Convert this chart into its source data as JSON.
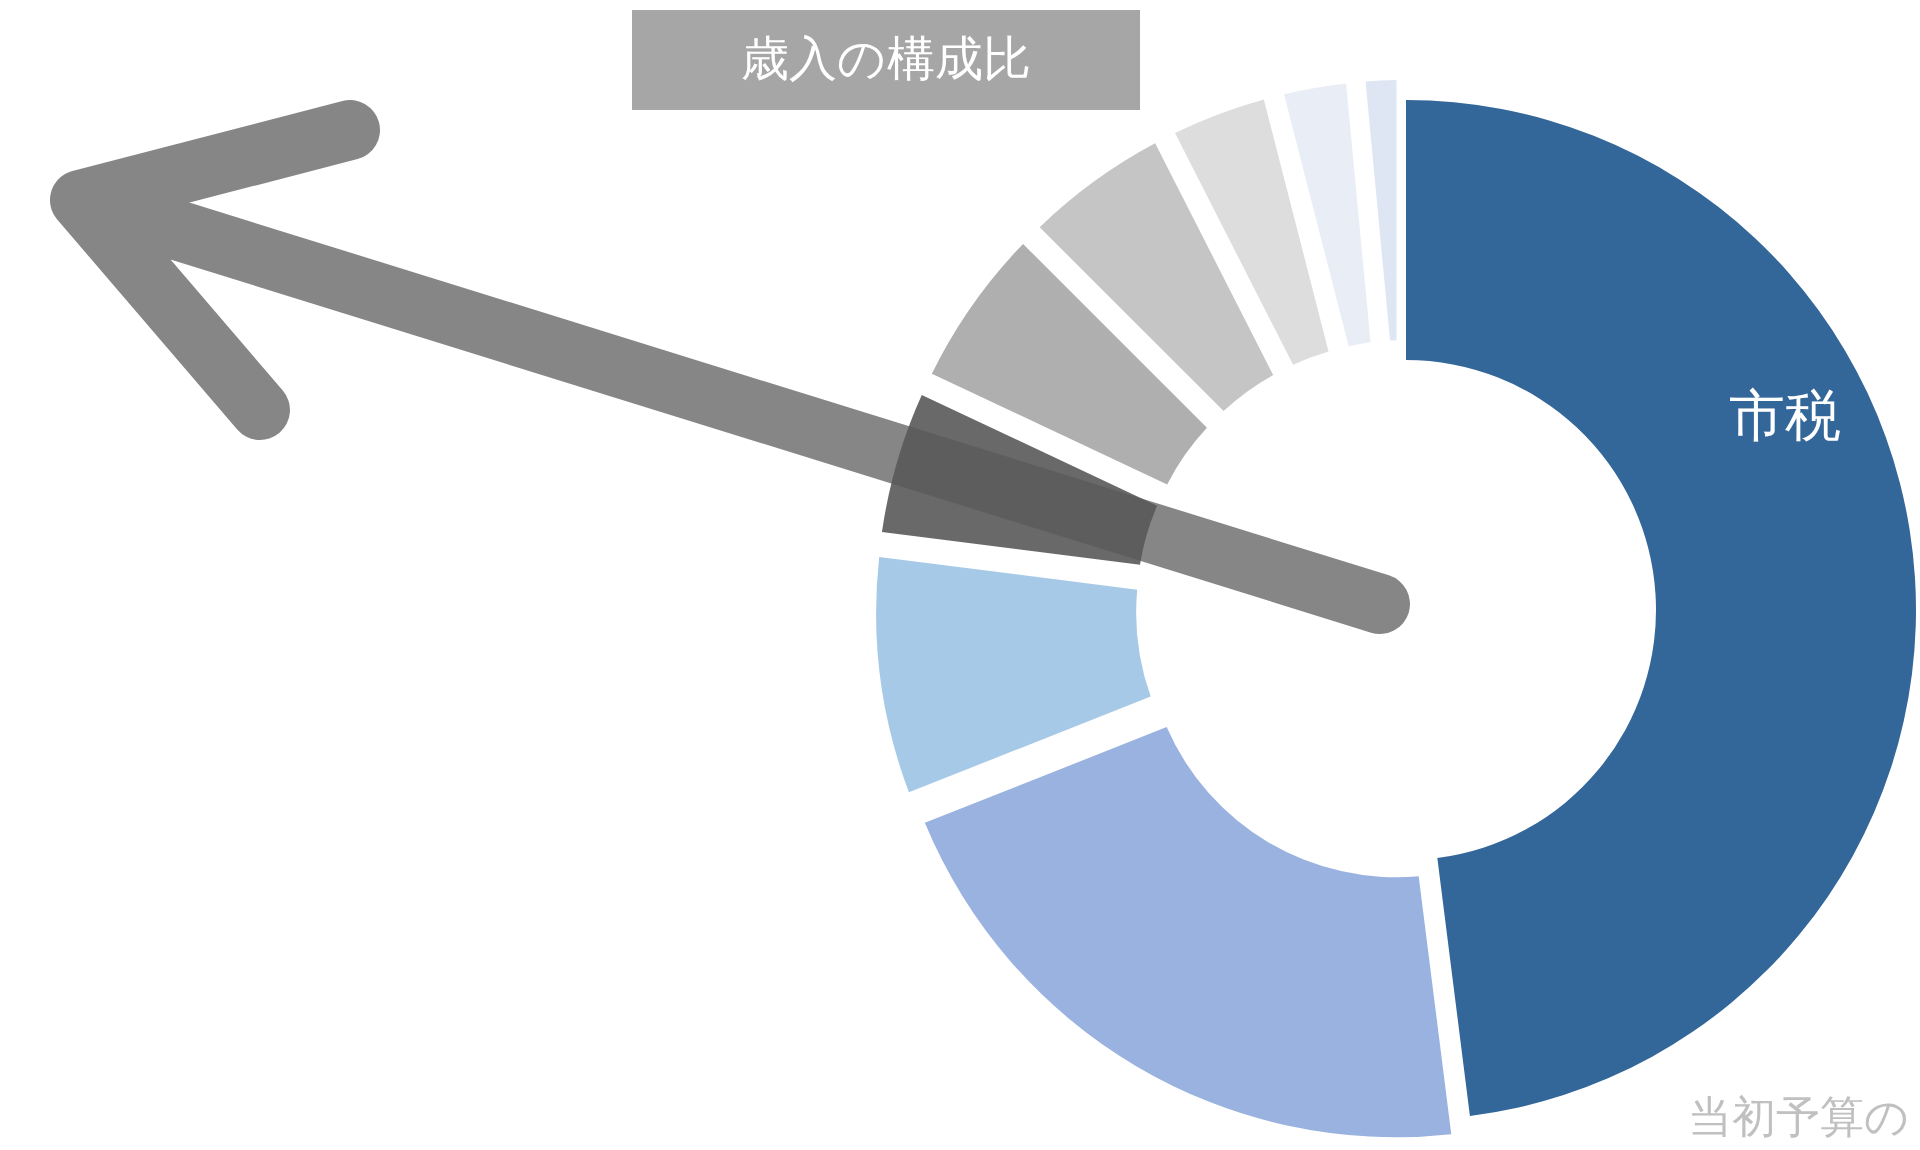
{
  "chart_data": {
    "type": "donut",
    "title": "歳入の構成比",
    "categories": [
      "市税",
      null,
      null,
      null,
      null,
      null,
      null,
      null,
      null
    ],
    "values": [
      48,
      21,
      8,
      5,
      5.5,
      5,
      3.5,
      2.5,
      1.5
    ],
    "colors": [
      "#336699",
      "#8eaadc",
      "#9dc3e6",
      "#595959",
      "#a6a6a6",
      "#bfbfbf",
      "#d9d9d9",
      "#e7ecf5",
      "#dae3f3"
    ],
    "annotations": [
      "当初予算の"
    ]
  }
}
